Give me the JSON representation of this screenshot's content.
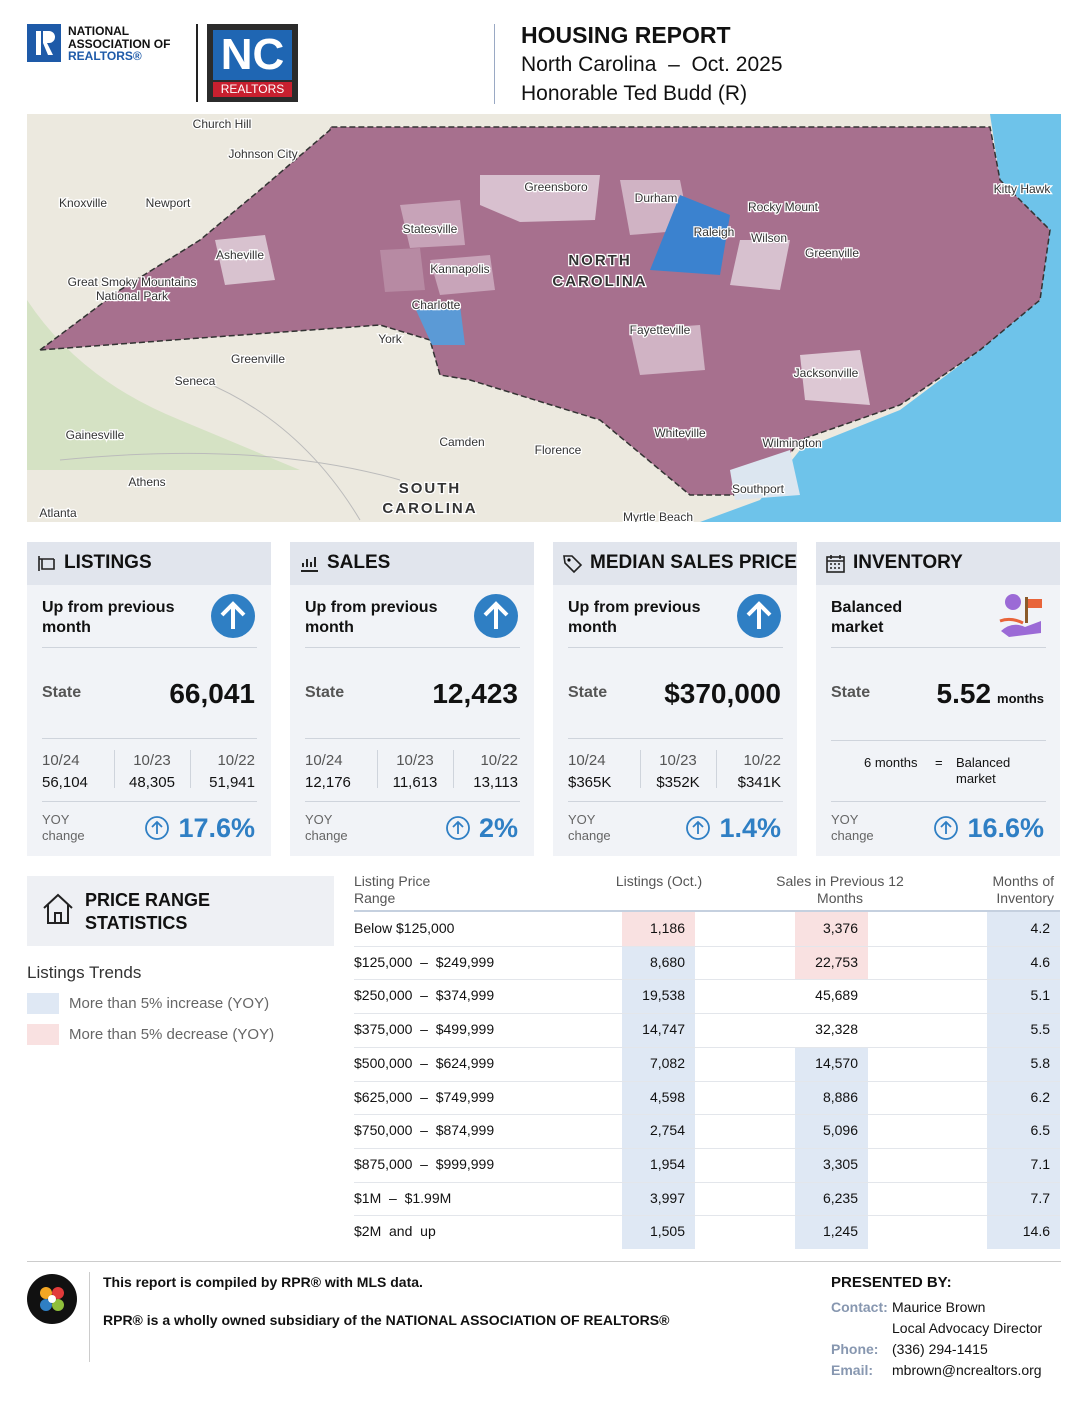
{
  "header": {
    "nar_logo": [
      "NATIONAL",
      "ASSOCIATION OF",
      "REALTORS®"
    ],
    "nc_logo": {
      "mark": "NC",
      "name": "REALTORS"
    },
    "title": "HOUSING REPORT",
    "region": "North Carolina",
    "separator": "–",
    "period": "Oct. 2025",
    "official": "Honorable Ted Budd (R)"
  },
  "map": {
    "labels": [
      "Church Hill",
      "Johnson City",
      "Knoxville",
      "Newport",
      "Greensboro",
      "Durham",
      "Raleigh",
      "Rocky Mount",
      "Wilson",
      "Greenville",
      "Kitty Hawk",
      "Statesville",
      "Kannapolis",
      "Asheville",
      "Great Smoky Mountains",
      "National Park",
      "NORTH",
      "CAROLINA",
      "Charlotte",
      "York",
      "Fayetteville",
      "Greenville",
      "Seneca",
      "Jacksonville",
      "Gainesville",
      "Camden",
      "Florence",
      "Whiteville",
      "Wilmington",
      "Athens",
      "SOUTH",
      "CAROLINA",
      "Southport",
      "Atlanta",
      "Myrtle Beach"
    ]
  },
  "cards": [
    {
      "title": "LISTINGS",
      "status": "Up from previous month",
      "state_label": "State",
      "state_value": "66,041",
      "history": [
        {
          "period": "10/24",
          "value": "56,104"
        },
        {
          "period": "10/23",
          "value": "48,305"
        },
        {
          "period": "10/22",
          "value": "51,941"
        }
      ],
      "yoy_label": "YOY change",
      "yoy_value": "17.6%"
    },
    {
      "title": "SALES",
      "status": "Up from previous month",
      "state_label": "State",
      "state_value": "12,423",
      "history": [
        {
          "period": "10/24",
          "value": "12,176"
        },
        {
          "period": "10/23",
          "value": "11,613"
        },
        {
          "period": "10/22",
          "value": "13,113"
        }
      ],
      "yoy_label": "YOY change",
      "yoy_value": "2%"
    },
    {
      "title": "MEDIAN SALES PRICE",
      "status": "Up from previous month",
      "state_label": "State",
      "state_value": "$370,000",
      "history": [
        {
          "period": "10/24",
          "value": "$365K"
        },
        {
          "period": "10/23",
          "value": "$352K"
        },
        {
          "period": "10/22",
          "value": "$341K"
        }
      ],
      "yoy_label": "YOY change",
      "yoy_value": "1.4%"
    },
    {
      "title": "INVENTORY",
      "status": "Balanced market",
      "state_label": "State",
      "state_value": "5.52",
      "state_unit": "months",
      "note": {
        "left": "6 months",
        "equals": "=",
        "right": "Balanced market"
      },
      "yoy_label": "YOY change",
      "yoy_value": "16.6%"
    }
  ],
  "price_range": {
    "title": "PRICE RANGE STATISTICS",
    "legend": {
      "title": "Listings Trends",
      "items": [
        {
          "label": "More than 5% increase (YOY)",
          "trend": "increase"
        },
        {
          "label": "More than 5% decrease (YOY)",
          "trend": "decrease"
        }
      ]
    }
  },
  "table": {
    "headers": [
      "Listing Price Range",
      "Listings (Oct.)",
      "Sales in Previous 12 Months",
      "Months of Inventory"
    ],
    "rows": [
      [
        "Below $125,000",
        "1,186",
        "3,376",
        "4.2"
      ],
      [
        "$125,000  –  $249,999",
        "8,680",
        "22,753",
        "4.6"
      ],
      [
        "$250,000  –  $374,999",
        "19,538",
        "45,689",
        "5.1"
      ],
      [
        "$375,000  –  $499,999",
        "14,747",
        "32,328",
        "5.5"
      ],
      [
        "$500,000  –  $624,999",
        "7,082",
        "14,570",
        "5.8"
      ],
      [
        "$625,000  –  $749,999",
        "4,598",
        "8,886",
        "6.2"
      ],
      [
        "$750,000  –  $874,999",
        "2,754",
        "5,096",
        "6.5"
      ],
      [
        "$875,000  –  $999,999",
        "1,954",
        "3,305",
        "7.1"
      ],
      [
        "$1M  –  $1.99M",
        "3,997",
        "6,235",
        "7.7"
      ],
      [
        "$2M  and  up",
        "1,505",
        "1,245",
        "14.6"
      ]
    ],
    "listings_trend": [
      "decrease",
      "increase",
      "increase",
      "increase",
      "increase",
      "increase",
      "increase",
      "increase",
      "increase",
      "increase"
    ],
    "sales_trend": [
      "decrease",
      "decrease",
      null,
      null,
      "increase",
      "increase",
      "increase",
      "increase",
      "increase",
      "increase"
    ]
  },
  "footer": {
    "note1": "This report is compiled by RPR® with MLS data.",
    "note2": "RPR® is a wholly owned subsidiary of the NATIONAL ASSOCIATION OF REALTORS®",
    "presented": "PRESENTED BY:",
    "contact_label": "Contact:",
    "contact_name": "Maurice Brown",
    "contact_title": "Local Advocacy Director",
    "phone_label": "Phone:",
    "phone": "(336) 294-1415",
    "email_label": "Email:",
    "email": "mbrown@ncrealtors.org"
  }
}
